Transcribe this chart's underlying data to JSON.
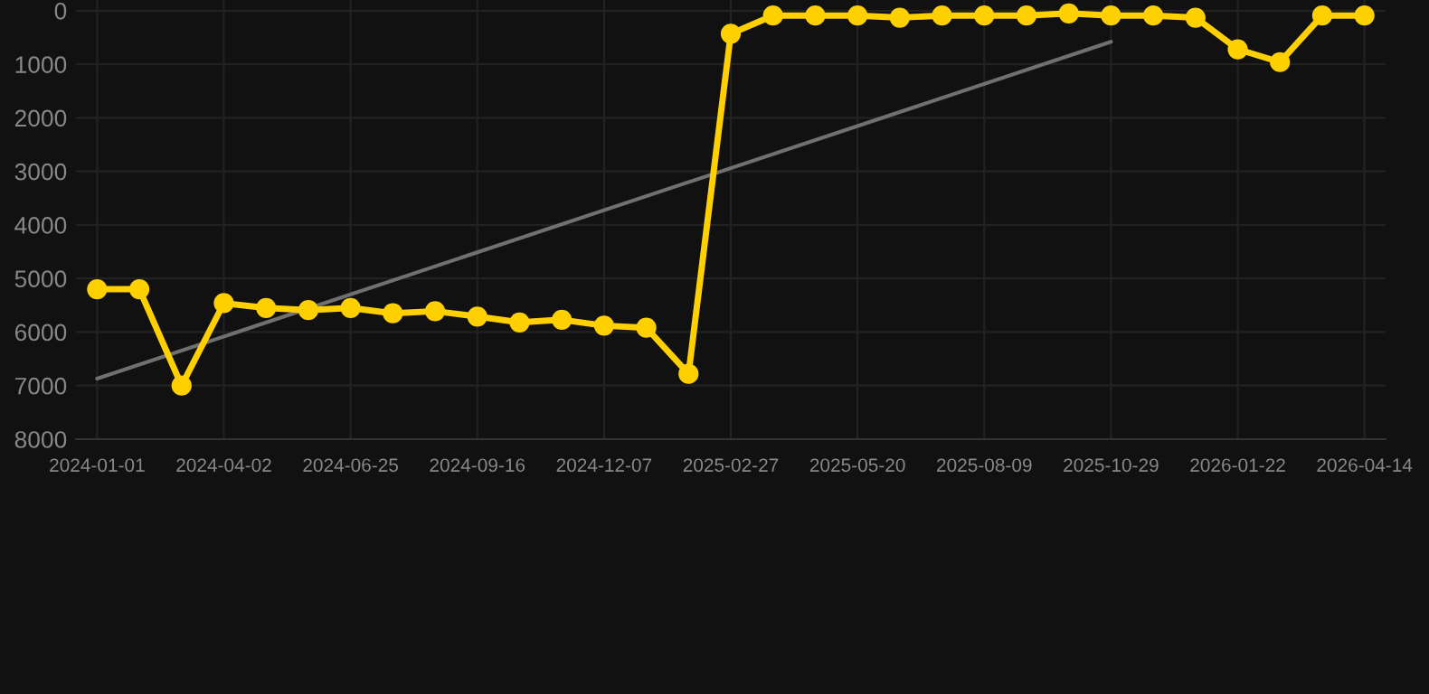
{
  "chart_data": {
    "type": "line",
    "categories": [
      "2024-01-01",
      null,
      null,
      "2024-04-02",
      null,
      null,
      "2024-06-25",
      null,
      null,
      "2024-09-16",
      null,
      null,
      "2024-12-07",
      null,
      null,
      "2025-02-27",
      null,
      null,
      "2025-05-20",
      null,
      null,
      "2025-08-09",
      null,
      null,
      "2025-10-29",
      null,
      null,
      "2026-01-22",
      null,
      null,
      "2026-04-14"
    ],
    "series": [
      {
        "color": "#ffd000",
        "marker": "circle",
        "values": [
          5200,
          5200,
          7000,
          5460,
          5550,
          5590,
          5550,
          5650,
          5610,
          5710,
          5820,
          5770,
          5880,
          5920,
          6780,
          430,
          90,
          90,
          90,
          130,
          90,
          90,
          90,
          50,
          90,
          90,
          130,
          720,
          960,
          90,
          90
        ]
      },
      {
        "color": "#707070",
        "marker": "none",
        "values": [
          6870,
          null,
          null,
          null,
          null,
          null,
          null,
          null,
          null,
          null,
          null,
          null,
          null,
          null,
          null,
          null,
          null,
          null,
          null,
          null,
          null,
          null,
          null,
          null,
          580,
          null,
          null,
          null,
          null,
          null,
          null
        ]
      }
    ],
    "ylim": [
      8000,
      -200
    ],
    "yticks": [
      0,
      1000,
      2000,
      3000,
      4000,
      5000,
      6000,
      7000,
      8000
    ],
    "grid": true,
    "line_style": "solid"
  }
}
